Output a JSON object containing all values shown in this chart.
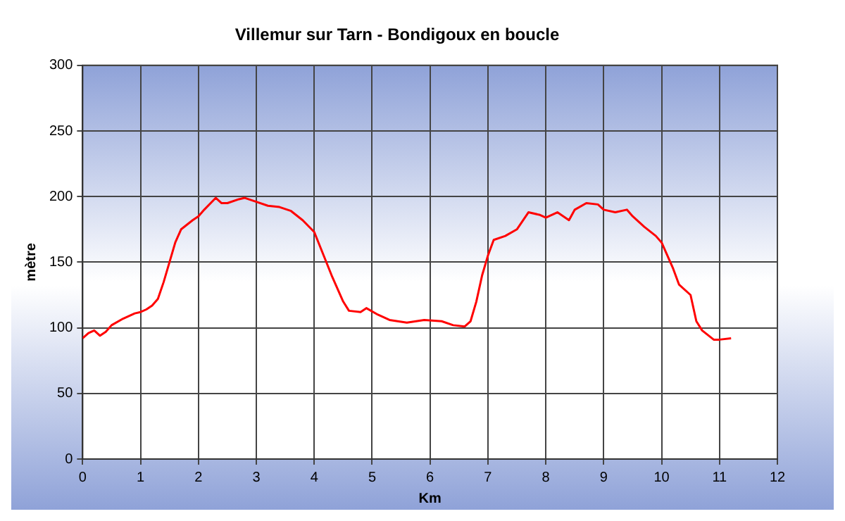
{
  "chart_data": {
    "type": "line",
    "title": "Villemur sur Tarn - Bondigoux en boucle",
    "xlabel": "Km",
    "ylabel": "mètre",
    "series": [
      {
        "color": "#ff0000",
        "x": [
          0,
          0.1,
          0.2,
          0.3,
          0.4,
          0.5,
          0.7,
          0.9,
          1.0,
          1.1,
          1.2,
          1.3,
          1.4,
          1.5,
          1.6,
          1.7,
          1.9,
          2.0,
          2.1,
          2.3,
          2.4,
          2.5,
          2.7,
          2.8,
          3.0,
          3.2,
          3.4,
          3.6,
          3.8,
          4.0,
          4.1,
          4.3,
          4.5,
          4.6,
          4.8,
          4.9,
          5.1,
          5.3,
          5.6,
          5.9,
          6.2,
          6.4,
          6.6,
          6.7,
          6.8,
          6.9,
          7.0,
          7.1,
          7.3,
          7.5,
          7.7,
          7.9,
          8.0,
          8.2,
          8.4,
          8.5,
          8.7,
          8.9,
          9.0,
          9.2,
          9.4,
          9.5,
          9.7,
          9.9,
          10.0,
          10.2,
          10.3,
          10.5,
          10.6,
          10.7,
          10.9,
          11.0,
          11.2
        ],
        "values": [
          92,
          96,
          98,
          94,
          97,
          102,
          107,
          111,
          112,
          114,
          117,
          122,
          135,
          150,
          165,
          175,
          182,
          185,
          190,
          199,
          195,
          195,
          198,
          199,
          196,
          193,
          192,
          189,
          182,
          173,
          162,
          140,
          120,
          113,
          112,
          115,
          110,
          106,
          104,
          106,
          105,
          102,
          101,
          105,
          120,
          140,
          155,
          167,
          170,
          175,
          188,
          186,
          184,
          188,
          182,
          190,
          195,
          194,
          190,
          188,
          190,
          185,
          177,
          170,
          165,
          145,
          133,
          125,
          105,
          98,
          91,
          91,
          92
        ]
      }
    ],
    "xlim": [
      0,
      12
    ],
    "xticks": [
      0,
      1,
      2,
      3,
      4,
      5,
      6,
      7,
      8,
      9,
      10,
      11,
      12
    ],
    "ylim": [
      0,
      300
    ],
    "yticks": [
      0,
      50,
      100,
      150,
      200,
      250,
      300
    ],
    "grid": true,
    "legend": false,
    "marker": "none",
    "line_style": "solid"
  }
}
